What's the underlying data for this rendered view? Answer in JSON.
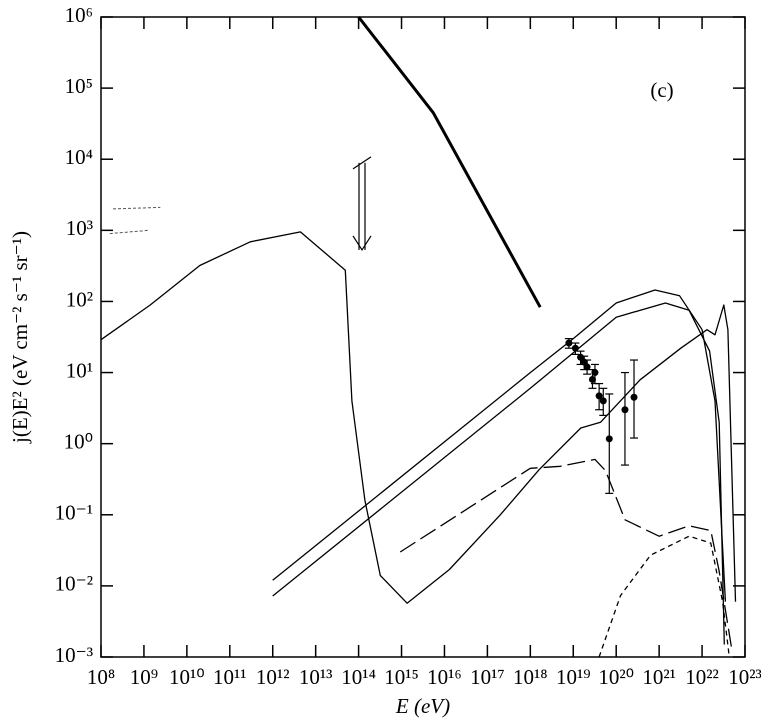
{
  "chart_data": {
    "type": "line",
    "annotation": "(c)",
    "x_label": "E (eV)",
    "y_label": "j(E)E² (eV cm⁻² s⁻¹ sr⁻¹)",
    "log_x": true,
    "log_y": true,
    "xlim": [
      100000000.0,
      1e+23
    ],
    "ylim": [
      0.001,
      1000000
    ],
    "xticks": [
      {
        "value": 100000000.0,
        "label": "10⁸"
      },
      {
        "value": 1000000000.0,
        "label": "10⁹"
      },
      {
        "value": 10000000000.0,
        "label": "10¹⁰"
      },
      {
        "value": 100000000000.0,
        "label": "10¹¹"
      },
      {
        "value": 1000000000000.0,
        "label": "10¹²"
      },
      {
        "value": 10000000000000.0,
        "label": "10¹³"
      },
      {
        "value": 100000000000000.0,
        "label": "10¹⁴"
      },
      {
        "value": 1000000000000000.0,
        "label": "10¹⁵"
      },
      {
        "value": 1e+16,
        "label": "10¹⁶"
      },
      {
        "value": 1e+17,
        "label": "10¹⁷"
      },
      {
        "value": 1e+18,
        "label": "10¹⁸"
      },
      {
        "value": 1e+19,
        "label": "10¹⁹"
      },
      {
        "value": 1e+20,
        "label": "10²⁰"
      },
      {
        "value": 1e+21,
        "label": "10²¹"
      },
      {
        "value": 1e+22,
        "label": "10²²"
      },
      {
        "value": 1e+23,
        "label": "10²³"
      }
    ],
    "yticks": [
      {
        "value": 0.001,
        "label": "10⁻³"
      },
      {
        "value": 0.01,
        "label": "10⁻²"
      },
      {
        "value": 0.1,
        "label": "10⁻¹"
      },
      {
        "value": 1,
        "label": "10⁰"
      },
      {
        "value": 10,
        "label": "10¹"
      },
      {
        "value": 100,
        "label": "10²"
      },
      {
        "value": 1000,
        "label": "10³"
      },
      {
        "value": 10000,
        "label": "10⁴"
      },
      {
        "value": 100000,
        "label": "10⁵"
      },
      {
        "value": 1000000,
        "label": "10⁶"
      }
    ],
    "series": [
      {
        "style": "thick",
        "color": "#000000",
        "x": [
          100000000000000.0,
          5500000000000000.0,
          1.7e+18
        ],
        "values": [
          1000000,
          45000,
          83
        ]
      },
      {
        "style": "solid",
        "color": "#000000",
        "x": [
          100000000.0,
          1400000000.0,
          20000000000.0,
          300000000000.0,
          4400000000000.0,
          49000000000000.0,
          70000000000000.0,
          140000000000000.0,
          320000000000000.0,
          1350000000000000.0,
          1.3e+16,
          2e+17,
          1.6e+18,
          1.5e+19,
          4.3e+19,
          3.6e+20,
          3.2e+21,
          1.3e+22,
          2e+22,
          3.2e+22,
          4e+22,
          6e+22
        ],
        "values": [
          29,
          89,
          320,
          690,
          950,
          275,
          4,
          0.16,
          0.014,
          0.0057,
          0.017,
          0.1,
          0.43,
          1.66,
          2,
          7.9,
          22,
          40,
          34,
          89,
          40,
          0.006
        ]
      },
      {
        "style": "solid",
        "color": "#000000",
        "x": [
          1000000000000.0,
          1e+18,
          1e+19,
          1e+20,
          8e+20,
          3e+21,
          1e+22,
          2e+22,
          3.5e+22
        ],
        "values": [
          0.012,
          10,
          30,
          95,
          145,
          120,
          40,
          4,
          0.006
        ]
      },
      {
        "style": "solid",
        "color": "#000000",
        "x": [
          1000000000000.0,
          1e+18,
          1e+19,
          1e+20,
          1.4e+21,
          5e+21,
          1.5e+22,
          2.5e+22,
          3.3e+22
        ],
        "values": [
          0.0072,
          6,
          19,
          60,
          95,
          75,
          20,
          2,
          0.0015
        ]
      },
      {
        "style": "dash",
        "color": "#000000",
        "x": [
          930000000000000.0,
          1e+18,
          5e+18,
          3.2e+19,
          5.6e+19,
          1.6e+20,
          1e+21,
          5e+21,
          1.6e+22,
          2.5e+22,
          5e+22
        ],
        "values": [
          0.03,
          0.45,
          0.48,
          0.6,
          0.42,
          0.085,
          0.05,
          0.07,
          0.06,
          0.016,
          0.0012
        ]
      },
      {
        "style": "shortdash",
        "color": "#000000",
        "x": [
          4e+19,
          1.26e+20,
          6.3e+20,
          5e+21,
          1.6e+22,
          3e+22,
          4.3e+22
        ],
        "values": [
          0.001,
          0.0073,
          0.027,
          0.05,
          0.04,
          0.006,
          0.001
        ]
      },
      {
        "style": "faint",
        "color": "#555555",
        "x": [
          190000000.0,
          2400000000.0
        ],
        "values": [
          2000,
          2100
        ]
      },
      {
        "style": "faint",
        "color": "#555555",
        "x": [
          160000000.0,
          1300000000.0
        ],
        "values": [
          900,
          1000
        ]
      },
      {
        "style": "points",
        "color": "#000000",
        "x": [
          7.9e+18,
          1.12e+19,
          1.48e+19,
          1.8e+19,
          2.1e+19,
          2.8e+19,
          3.2e+19,
          4e+19,
          5e+19,
          6.9e+19,
          1.6e+20,
          2.6e+20
        ],
        "values": [
          26,
          22,
          16.4,
          14,
          12,
          8,
          10,
          4.7,
          4,
          1.17,
          3,
          4.5
        ],
        "err_low": [
          22,
          18,
          13,
          11,
          9.5,
          6,
          7,
          3,
          2.5,
          0.2,
          0.5,
          1.2
        ],
        "err_high": [
          30,
          26,
          20,
          17,
          15,
          11,
          13,
          7,
          6,
          5,
          10,
          15
        ]
      }
    ],
    "upper_limit": {
      "x": 120000000000000.0,
      "from": 8900,
      "to": 530
    }
  }
}
